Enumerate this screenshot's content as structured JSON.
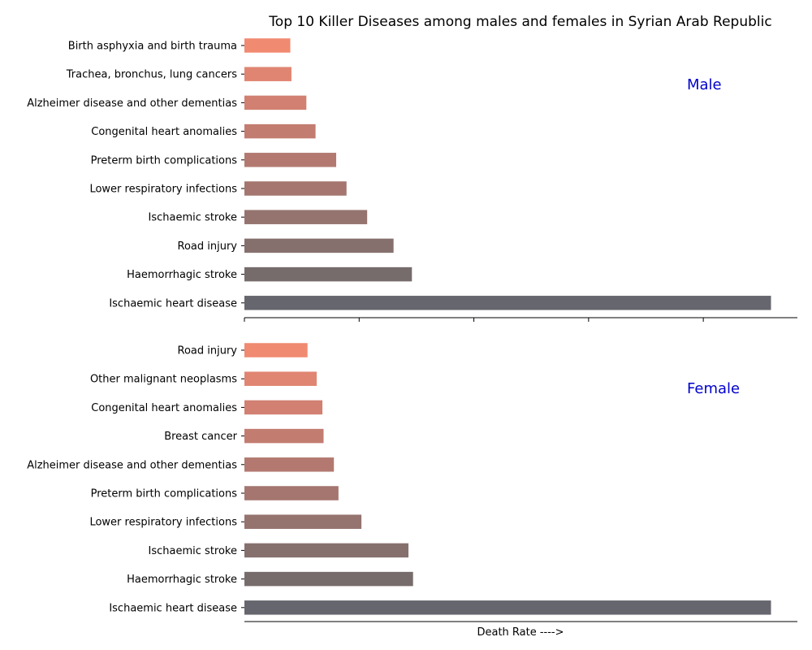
{
  "title": "Top 10 Killer Diseases among males and females in Syrian Arab Republic",
  "xlabel": "Death Rate ---->",
  "colors": {
    "axis": "#000000",
    "panel_label": "#0000cc",
    "bars": [
      "#f08a70",
      "#e08572",
      "#d18071",
      "#c27c70",
      "#b37970",
      "#a4766f",
      "#95736f",
      "#86706d",
      "#776c6c",
      "#66666e"
    ]
  },
  "chart_data": [
    {
      "type": "bar",
      "orientation": "horizontal",
      "panel_label": "Male",
      "categories": [
        "Birth asphyxia and birth trauma",
        "Trachea, bronchus, lung cancers",
        "Alzheimer disease and other dementias",
        "Congenital heart anomalies",
        "Preterm birth complications",
        "Lower respiratory infections",
        "Ischaemic stroke",
        "Road injury",
        "Haemorrhagic stroke",
        "Ischaemic heart disease"
      ],
      "values": [
        20,
        20.5,
        27,
        31,
        40,
        44.5,
        53.5,
        65,
        73,
        229.5
      ],
      "xlim": [
        0,
        241
      ]
    },
    {
      "type": "bar",
      "orientation": "horizontal",
      "panel_label": "Female",
      "categories": [
        "Road injury",
        "Other malignant neoplasms",
        "Congenital heart anomalies",
        "Breast cancer",
        "Alzheimer disease and other dementias",
        "Preterm birth complications",
        "Lower respiratory infections",
        "Ischaemic stroke",
        "Haemorrhagic stroke",
        "Ischaemic heart disease"
      ],
      "values": [
        27.5,
        31.5,
        34,
        34.5,
        39,
        41,
        51,
        71.5,
        73.5,
        229.5
      ],
      "xlim": [
        0,
        241
      ]
    }
  ]
}
